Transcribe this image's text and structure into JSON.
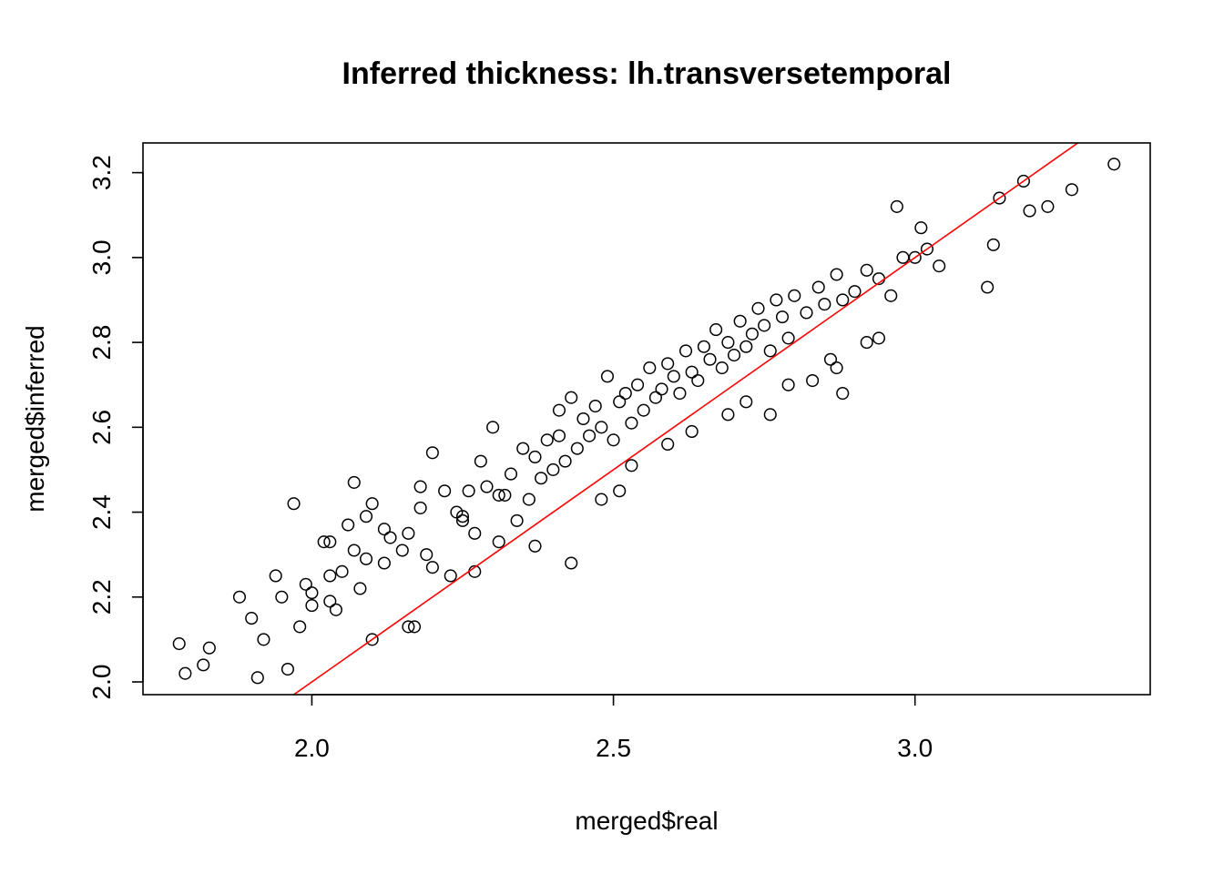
{
  "chart_data": {
    "type": "scatter",
    "title": "Inferred thickness: lh.transversetemporal",
    "xlabel": "merged$real",
    "ylabel": "merged$inferred",
    "xlim": [
      1.72,
      3.39
    ],
    "ylim": [
      1.97,
      3.27
    ],
    "xticks": [
      2.0,
      2.5,
      3.0
    ],
    "xtick_labels": [
      "2.0",
      "2.5",
      "3.0"
    ],
    "yticks": [
      2.0,
      2.2,
      2.4,
      2.6,
      2.8,
      3.0,
      3.2
    ],
    "ytick_labels": [
      "2.0",
      "2.2",
      "2.4",
      "2.6",
      "2.8",
      "3.0",
      "3.2"
    ],
    "grid": false,
    "marker": "open-circle",
    "reference_line": {
      "type": "identity",
      "slope": 1,
      "intercept": 0,
      "color": "#ff0000"
    },
    "colors": {
      "points": "#000000",
      "line": "#ff0000",
      "frame": "#000000"
    },
    "series": [
      {
        "x": [
          1.78,
          1.79,
          1.82,
          1.83,
          1.88,
          1.9,
          1.91,
          1.92,
          1.94,
          1.95,
          1.96,
          1.97,
          1.98,
          1.99,
          2.0,
          2.0,
          2.02,
          2.03,
          2.03,
          2.04,
          2.05,
          2.06,
          2.07,
          2.08,
          2.09,
          2.1,
          2.1,
          2.12,
          2.13,
          2.15,
          2.16,
          2.17,
          2.18,
          2.19,
          2.2,
          2.2,
          2.22,
          2.23,
          2.24,
          2.25,
          2.26,
          2.27,
          2.28,
          2.29,
          2.3,
          2.31,
          2.31,
          2.33,
          2.34,
          2.35,
          2.36,
          2.37,
          2.38,
          2.39,
          2.4,
          2.41,
          2.42,
          2.43,
          2.44,
          2.45,
          2.46,
          2.47,
          2.48,
          2.49,
          2.5,
          2.51,
          2.52,
          2.53,
          2.54,
          2.55,
          2.56,
          2.57,
          2.58,
          2.59,
          2.6,
          2.61,
          2.62,
          2.63,
          2.64,
          2.65,
          2.66,
          2.67,
          2.68,
          2.69,
          2.7,
          2.71,
          2.72,
          2.73,
          2.74,
          2.75,
          2.76,
          2.77,
          2.78,
          2.79,
          2.8,
          2.82,
          2.84,
          2.85,
          2.86,
          2.87,
          2.88,
          2.9,
          2.92,
          2.94,
          2.96,
          2.98,
          3.0,
          3.02,
          3.04,
          3.12,
          3.14,
          3.18,
          3.22,
          3.26,
          3.33,
          2.43,
          2.51,
          2.76,
          2.88,
          2.97,
          3.01,
          3.13,
          3.19,
          2.07,
          2.12,
          2.16,
          2.27,
          2.37,
          2.48,
          2.59,
          2.69,
          2.79,
          2.87,
          2.94,
          2.03,
          2.09,
          2.18,
          2.25,
          2.32,
          2.41,
          2.53,
          2.63,
          2.72,
          2.83,
          2.92
        ],
        "y": [
          2.09,
          2.02,
          2.04,
          2.08,
          2.2,
          2.15,
          2.01,
          2.1,
          2.25,
          2.2,
          2.03,
          2.42,
          2.13,
          2.23,
          2.18,
          2.21,
          2.33,
          2.25,
          2.19,
          2.17,
          2.26,
          2.37,
          2.31,
          2.22,
          2.39,
          2.1,
          2.42,
          2.28,
          2.34,
          2.31,
          2.35,
          2.13,
          2.46,
          2.3,
          2.27,
          2.54,
          2.45,
          2.25,
          2.4,
          2.38,
          2.45,
          2.35,
          2.52,
          2.46,
          2.6,
          2.44,
          2.33,
          2.49,
          2.38,
          2.55,
          2.43,
          2.53,
          2.48,
          2.57,
          2.5,
          2.64,
          2.52,
          2.67,
          2.55,
          2.62,
          2.58,
          2.65,
          2.6,
          2.72,
          2.57,
          2.66,
          2.68,
          2.61,
          2.7,
          2.64,
          2.74,
          2.67,
          2.69,
          2.75,
          2.72,
          2.68,
          2.78,
          2.73,
          2.71,
          2.79,
          2.76,
          2.83,
          2.74,
          2.8,
          2.77,
          2.85,
          2.79,
          2.82,
          2.88,
          2.84,
          2.78,
          2.9,
          2.86,
          2.81,
          2.91,
          2.87,
          2.93,
          2.89,
          2.76,
          2.96,
          2.9,
          2.92,
          2.97,
          2.95,
          2.91,
          3.0,
          3.0,
          3.02,
          2.98,
          2.93,
          3.14,
          3.18,
          3.12,
          3.16,
          3.22,
          2.28,
          2.45,
          2.63,
          2.68,
          3.12,
          3.07,
          3.03,
          3.11,
          2.47,
          2.36,
          2.13,
          2.26,
          2.32,
          2.43,
          2.56,
          2.63,
          2.7,
          2.74,
          2.81,
          2.33,
          2.29,
          2.41,
          2.39,
          2.44,
          2.58,
          2.51,
          2.59,
          2.66,
          2.71,
          2.8
        ]
      }
    ]
  }
}
